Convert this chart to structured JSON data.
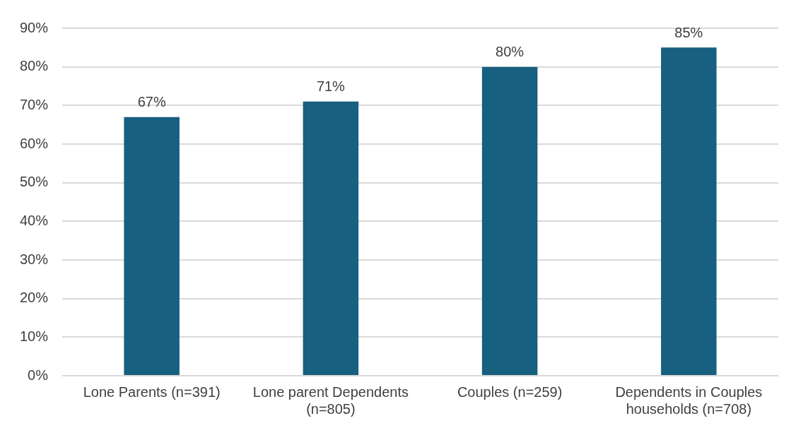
{
  "chart_data": {
    "type": "bar",
    "categories": [
      "Lone Parents (n=391)",
      "Lone parent Dependents (n=805)",
      "Couples (n=259)",
      "Dependents in Couples households (n=708)"
    ],
    "values": [
      67,
      71,
      80,
      85
    ],
    "color": "#17607f",
    "value_labels": [
      "67%",
      "71%",
      "80%",
      "85%"
    ],
    "ylim": [
      0,
      90
    ],
    "yticks": [
      {
        "value": 0,
        "label": "0%"
      },
      {
        "value": 10,
        "label": "10%"
      },
      {
        "value": 20,
        "label": "20%"
      },
      {
        "value": 30,
        "label": "30%"
      },
      {
        "value": 40,
        "label": "40%"
      },
      {
        "value": 50,
        "label": "50%"
      },
      {
        "value": 60,
        "label": "60%"
      },
      {
        "value": 70,
        "label": "70%"
      },
      {
        "value": 80,
        "label": "80%"
      },
      {
        "value": 90,
        "label": "90%"
      }
    ],
    "grid": "y",
    "legend": false
  }
}
